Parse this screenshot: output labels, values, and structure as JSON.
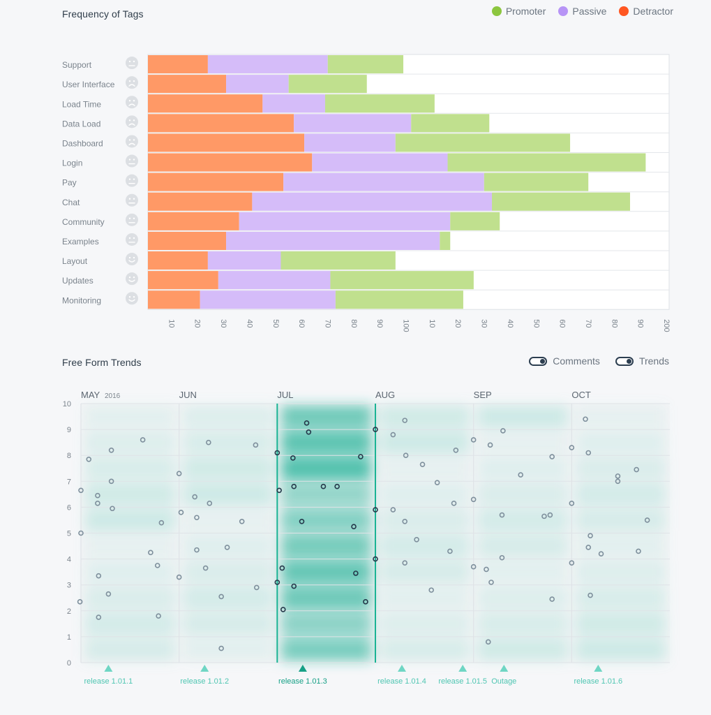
{
  "page": {
    "bar_section_title": "Frequency of Tags",
    "trend_section_title": "Free Form Trends"
  },
  "legend": [
    {
      "label": "Promoter",
      "color": "#8cc63f"
    },
    {
      "label": "Passive",
      "color": "#b794f6"
    },
    {
      "label": "Detractor",
      "color": "#ff5722"
    }
  ],
  "toggles": [
    {
      "label": "Comments",
      "on": true
    },
    {
      "label": "Trends",
      "on": true
    }
  ],
  "chart_data": [
    {
      "type": "bar",
      "title": "Frequency of Tags",
      "orientation": "horizontal-stacked",
      "colors": {
        "Detractor": "#ff9966",
        "Passive": "#d5bcf9",
        "Promoter": "#c0e08e"
      },
      "x_tick_labels": [
        "10",
        "20",
        "30",
        "40",
        "50",
        "60",
        "70",
        "80",
        "90",
        "100",
        "10",
        "20",
        "30",
        "40",
        "50",
        "60",
        "70",
        "80",
        "90",
        "200"
      ],
      "categories": [
        "Support",
        "User Interface",
        "Load Time",
        "Data Load",
        "Dashboard",
        "Login",
        "Pay",
        "Chat",
        "Community",
        "Examples",
        "Layout",
        "Updates",
        "Monitoring"
      ],
      "series": [
        {
          "name": "Detractor",
          "values": [
            23,
            30,
            44,
            56,
            60,
            63,
            52,
            40,
            35,
            30,
            23,
            27,
            20
          ]
        },
        {
          "name": "Passive",
          "values": [
            46,
            24,
            24,
            45,
            35,
            52,
            77,
            92,
            81,
            82,
            28,
            43,
            52
          ]
        },
        {
          "name": "Promoter",
          "values": [
            29,
            30,
            42,
            30,
            67,
            76,
            40,
            53,
            19,
            4,
            44,
            55,
            49
          ]
        }
      ],
      "faces": [
        "neutral",
        "sad",
        "sad",
        "sad",
        "sad",
        "neutral",
        "neutral",
        "neutral",
        "neutral",
        "neutral",
        "happy",
        "happy",
        "happy"
      ],
      "xlim": [
        0,
        200
      ]
    },
    {
      "type": "scatter",
      "title": "Free Form Trends",
      "ylim": [
        0,
        10
      ],
      "y_tick_labels": [
        "0",
        "1",
        "2",
        "3",
        "4",
        "5",
        "6",
        "7",
        "8",
        "9",
        "10"
      ],
      "months": [
        {
          "label": "MAY",
          "year": "2016",
          "x": 0
        },
        {
          "label": "JUN",
          "x": 1
        },
        {
          "label": "JUL",
          "x": 2
        },
        {
          "label": "AUG",
          "x": 3
        },
        {
          "label": "SEP",
          "x": 4
        },
        {
          "label": "OCT",
          "x": 5
        }
      ],
      "xlim": [
        0,
        6
      ],
      "highlight_range": [
        2,
        3
      ],
      "releases": [
        {
          "label": "release 1.01.1",
          "x": 0.28,
          "active": false
        },
        {
          "label": "release 1.01.2",
          "x": 1.26,
          "active": false
        },
        {
          "label": "release 1.01.3",
          "x": 2.26,
          "active": true
        },
        {
          "label": "release 1.01.4",
          "x": 3.27,
          "active": false
        },
        {
          "label": "release 1.01.5",
          "x": 3.89,
          "active": false
        },
        {
          "label": "Outage",
          "x": 4.31,
          "active": false
        },
        {
          "label": "release 1.01.6",
          "x": 5.27,
          "active": false
        }
      ],
      "points": [
        [
          0.0,
          6.65
        ],
        [
          0.0,
          5.0
        ],
        [
          -0.01,
          2.35
        ],
        [
          0.08,
          7.85
        ],
        [
          0.17,
          6.45
        ],
        [
          0.17,
          6.15
        ],
        [
          0.18,
          3.35
        ],
        [
          0.18,
          1.75
        ],
        [
          0.28,
          2.65
        ],
        [
          0.31,
          8.2
        ],
        [
          0.31,
          7.0
        ],
        [
          0.32,
          5.95
        ],
        [
          0.63,
          8.6
        ],
        [
          0.71,
          4.25
        ],
        [
          0.78,
          3.75
        ],
        [
          0.79,
          1.8
        ],
        [
          0.82,
          5.4
        ],
        [
          1.0,
          7.3
        ],
        [
          1.0,
          3.3
        ],
        [
          1.02,
          5.8
        ],
        [
          1.16,
          6.4
        ],
        [
          1.18,
          5.6
        ],
        [
          1.18,
          4.35
        ],
        [
          1.27,
          3.65
        ],
        [
          1.3,
          8.5
        ],
        [
          1.31,
          6.15
        ],
        [
          1.43,
          2.55
        ],
        [
          1.43,
          0.55
        ],
        [
          1.49,
          4.45
        ],
        [
          1.64,
          5.45
        ],
        [
          1.78,
          8.4
        ],
        [
          1.79,
          2.9
        ],
        [
          2.0,
          8.1
        ],
        [
          2.02,
          6.65
        ],
        [
          2.0,
          3.1
        ],
        [
          2.05,
          3.65
        ],
        [
          2.06,
          2.05
        ],
        [
          2.16,
          7.9
        ],
        [
          2.17,
          6.8
        ],
        [
          2.17,
          2.95
        ],
        [
          2.25,
          5.45
        ],
        [
          2.3,
          9.25
        ],
        [
          2.32,
          8.9
        ],
        [
          2.47,
          6.8
        ],
        [
          2.61,
          6.8
        ],
        [
          2.78,
          5.25
        ],
        [
          2.8,
          3.45
        ],
        [
          2.85,
          7.95
        ],
        [
          2.9,
          2.35
        ],
        [
          3.0,
          9.0
        ],
        [
          3.0,
          5.9
        ],
        [
          3.0,
          4.0
        ],
        [
          3.18,
          8.8
        ],
        [
          3.18,
          5.9
        ],
        [
          3.3,
          9.35
        ],
        [
          3.3,
          5.45
        ],
        [
          3.3,
          3.85
        ],
        [
          3.31,
          8.0
        ],
        [
          3.42,
          4.75
        ],
        [
          3.48,
          7.65
        ],
        [
          3.57,
          2.8
        ],
        [
          3.63,
          6.95
        ],
        [
          3.76,
          4.3
        ],
        [
          3.8,
          6.15
        ],
        [
          3.82,
          8.2
        ],
        [
          4.0,
          8.6
        ],
        [
          4.0,
          6.3
        ],
        [
          4.0,
          3.7
        ],
        [
          4.13,
          3.6
        ],
        [
          4.15,
          0.8
        ],
        [
          4.17,
          8.4
        ],
        [
          4.18,
          3.1
        ],
        [
          4.29,
          5.7
        ],
        [
          4.29,
          4.05
        ],
        [
          4.3,
          8.95
        ],
        [
          4.48,
          7.25
        ],
        [
          4.72,
          5.65
        ],
        [
          4.78,
          5.7
        ],
        [
          4.8,
          7.95
        ],
        [
          4.8,
          2.45
        ],
        [
          5.0,
          8.3
        ],
        [
          5.0,
          6.15
        ],
        [
          5.0,
          3.85
        ],
        [
          5.14,
          9.4
        ],
        [
          5.17,
          8.1
        ],
        [
          5.17,
          4.45
        ],
        [
          5.19,
          4.9
        ],
        [
          5.19,
          2.6
        ],
        [
          5.3,
          4.2
        ],
        [
          5.47,
          7.2
        ],
        [
          5.47,
          7.0
        ],
        [
          5.66,
          7.45
        ],
        [
          5.68,
          4.3
        ],
        [
          5.77,
          5.5
        ]
      ]
    }
  ]
}
